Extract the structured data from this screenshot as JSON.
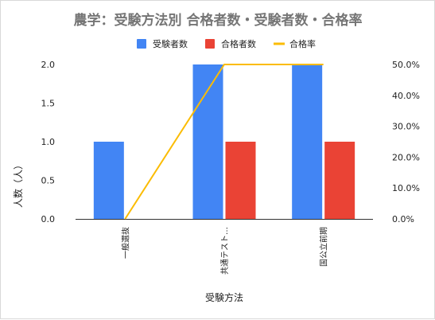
{
  "chart_data": {
    "type": "bar",
    "title": "農学：受験方法別 合格者数・受験者数・合格率",
    "categories": [
      "一般選抜",
      "共通テスト…",
      "国公立前期"
    ],
    "series": [
      {
        "name": "受験者数",
        "type": "bar",
        "axis": "left",
        "color": "#4285f4",
        "values": [
          1,
          2,
          2
        ]
      },
      {
        "name": "合格者数",
        "type": "bar",
        "axis": "left",
        "color": "#ea4335",
        "values": [
          0,
          1,
          1
        ]
      },
      {
        "name": "合格率",
        "type": "line",
        "axis": "right",
        "color": "#fbbc04",
        "values": [
          0,
          50,
          50
        ]
      }
    ],
    "xlabel": "受験方法",
    "ylabel": "人数（人）",
    "ylim": [
      0,
      2
    ],
    "y2lim": [
      0,
      50
    ],
    "yticks": [
      "0.0",
      "0.5",
      "1.0",
      "1.5",
      "2.0"
    ],
    "y2ticks": [
      "0.0%",
      "10.0%",
      "20.0%",
      "30.0%",
      "40.0%",
      "50.0%"
    ],
    "legend_position": "top-center",
    "grid": false
  }
}
